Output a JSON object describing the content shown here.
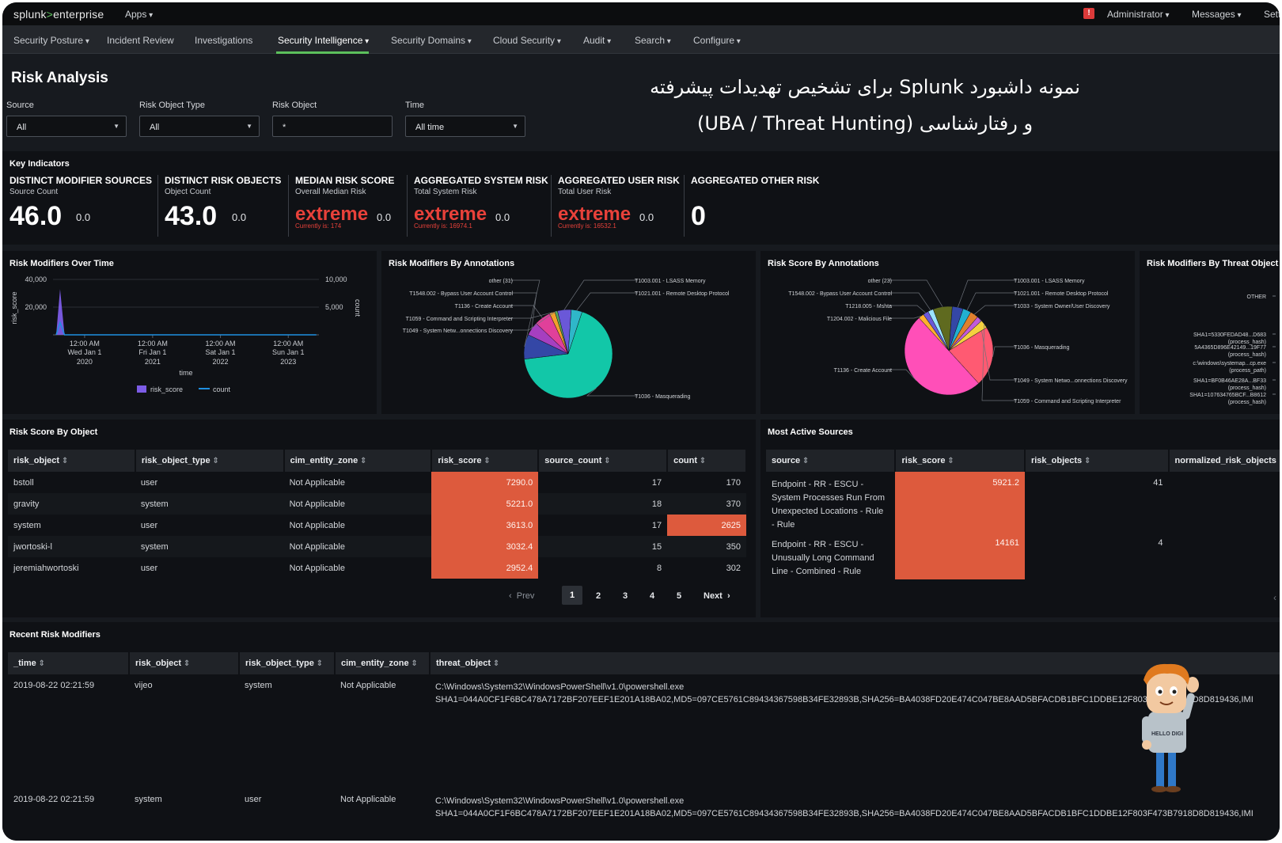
{
  "topbar": {
    "logo_main": "splunk",
    "logo_gt": ">",
    "logo_product": "enterprise",
    "apps": "Apps",
    "user": "Administrator",
    "messages": "Messages",
    "settings": "Setti",
    "alert_icon": "alert-icon"
  },
  "nav": [
    "Security Posture",
    "Incident Review",
    "Investigations",
    "Security Intelligence",
    "Security Domains",
    "Cloud Security",
    "Audit",
    "Search",
    "Configure"
  ],
  "page": {
    "title": "Risk Analysis",
    "overlay_line1": "نمونه داشبورد Splunk برای تشخیص تهدیدات پیشرفته",
    "overlay_line2": "و رفتارشناسی (UBA / Threat Hunting)"
  },
  "filters": {
    "source_label": "Source",
    "source_value": "All",
    "type_label": "Risk Object Type",
    "type_value": "All",
    "object_label": "Risk Object",
    "object_value": "*",
    "time_label": "Time",
    "time_value": "All time"
  },
  "key_indicators": {
    "title": "Key Indicators",
    "items": [
      {
        "title": "DISTINCT MODIFIER SOURCES",
        "sub": "Source Count",
        "value": "46.0",
        "delta": "0.0",
        "current": ""
      },
      {
        "title": "DISTINCT RISK OBJECTS",
        "sub": "Object Count",
        "value": "43.0",
        "delta": "0.0",
        "current": ""
      },
      {
        "title": "MEDIAN RISK SCORE",
        "sub": "Overall Median Risk",
        "value": "extreme",
        "delta": "0.0",
        "current": "Currently is: 174"
      },
      {
        "title": "AGGREGATED SYSTEM RISK",
        "sub": "Total System Risk",
        "value": "extreme",
        "delta": "0.0",
        "current": "Currently is: 16974.1"
      },
      {
        "title": "AGGREGATED USER RISK",
        "sub": "Total User Risk",
        "value": "extreme",
        "delta": "0.0",
        "current": "Currently is: 16532.1"
      },
      {
        "title": "AGGREGATED OTHER RISK",
        "sub": "",
        "value": "0",
        "delta": "",
        "current": ""
      }
    ]
  },
  "chart_titles": {
    "over_time": "Risk Modifiers Over Time",
    "by_annotations": "Risk Modifiers By Annotations",
    "score_by_annotations": "Risk Score By Annotations",
    "by_threat_object": "Risk Modifiers By Threat Object"
  },
  "chart_data": [
    {
      "type": "line",
      "title": "Risk Modifiers Over Time",
      "xlabel": "time",
      "ylabel": "risk_score",
      "y2label": "count",
      "ylim": [
        0,
        40000
      ],
      "y2lim": [
        0,
        10000
      ],
      "yticks": [
        "40,000",
        "20,000"
      ],
      "y2ticks": [
        "10,000",
        "5,000"
      ],
      "xticks": [
        {
          "l1": "12:00 AM",
          "l2": "Wed Jan 1",
          "l3": "2020"
        },
        {
          "l1": "12:00 AM",
          "l2": "Fri Jan 1",
          "l3": "2021"
        },
        {
          "l1": "12:00 AM",
          "l2": "Sat Jan 1",
          "l3": "2022"
        },
        {
          "l1": "12:00 AM",
          "l2": "Sun Jan 1",
          "l3": "2023"
        }
      ],
      "series": [
        {
          "name": "risk_score",
          "color": "#7c5ce6",
          "x": [
            "2019-08-01",
            "2019-08-22",
            "2019-09-15",
            "2023-06-01"
          ],
          "values": [
            0,
            33000,
            0,
            0
          ]
        },
        {
          "name": "count",
          "color": "#1f8fe0",
          "x": [
            "2019-08-01",
            "2019-08-22",
            "2019-09-15",
            "2023-06-01"
          ],
          "values": [
            0,
            2200,
            0,
            0
          ]
        }
      ],
      "legend": "bottom"
    },
    {
      "type": "pie",
      "title": "Risk Modifiers By Annotations",
      "labels": [
        "T1036 - Masquerading",
        "other (31)",
        "T1548.002 - Bypass User Account Control",
        "T1136 - Create Account",
        "T1059 - Command and Scripting Interpreter",
        "T1049 - System Netw...onnections Discovery",
        "T1003.001 - LSASS Memory",
        "T1021.001 - Remote Desktop Protocol"
      ],
      "values": [
        68,
        9,
        5,
        6,
        2,
        1,
        5,
        4
      ],
      "colors": [
        "#12c7a8",
        "#3447a6",
        "#a63fc0",
        "#e0409a",
        "#f2a02c",
        "#59a95b",
        "#6a58d8",
        "#2fb7c9"
      ]
    },
    {
      "type": "pie",
      "title": "Risk Score By Annotations",
      "labels": [
        "T1036 - Masquerading",
        "T1136 - Create Account",
        "T1204.002 - Malicious File",
        "T1218.005 - Mshta",
        "T1548.002 - Bypass User Account Control",
        "other (23)",
        "T1003.001 - LSASS Memory",
        "T1021.001 - Remote Desktop Protocol",
        "T1033 - System Owner/User Discovery",
        "T1049 - System Netwo...onnections Discovery",
        "T1059 - Command and Scripting Interpreter"
      ],
      "values": [
        22,
        50,
        2,
        2,
        2,
        7,
        4,
        3,
        3,
        2,
        3
      ],
      "colors": [
        "#ff5a72",
        "#ff4fb8",
        "#ffb02e",
        "#6a58d8",
        "#9be3ff",
        "#5f6a1f",
        "#3447a6",
        "#22b0d1",
        "#e0802e",
        "#c25adb",
        "#f4d03f"
      ]
    },
    {
      "type": "bar",
      "title": "Risk Modifiers By Threat Object",
      "categories": [
        "OTHER",
        "SHA1=5330FEDAD48...D683 (process_hash)",
        "5A4365D896E42149...19F77 (process_hash)",
        "c:\\windows\\systemap...cp.exe (process_path)",
        "SHA1=BF0B46AE28A...BF33 (process_hash)",
        "SHA1=107634765BCF...B8612 (process_hash)"
      ]
    }
  ],
  "risk_by_object": {
    "title": "Risk Score By Object",
    "columns": [
      "risk_object",
      "risk_object_type",
      "cim_entity_zone",
      "risk_score",
      "source_count",
      "count"
    ],
    "rows": [
      [
        "bstoll",
        "user",
        "Not Applicable",
        "7290.0",
        "17",
        "170"
      ],
      [
        "gravity",
        "system",
        "Not Applicable",
        "5221.0",
        "18",
        "370"
      ],
      [
        "system",
        "user",
        "Not Applicable",
        "3613.0",
        "17",
        "2625"
      ],
      [
        "jwortoski-l",
        "system",
        "Not Applicable",
        "3032.4",
        "15",
        "350"
      ],
      [
        "jeremiahwortoski",
        "user",
        "Not Applicable",
        "2952.4",
        "8",
        "302"
      ]
    ],
    "pager": {
      "prev": "Prev",
      "pages": [
        "1",
        "2",
        "3",
        "4",
        "5"
      ],
      "next": "Next"
    }
  },
  "most_active": {
    "title": "Most Active Sources",
    "columns": [
      "source",
      "risk_score",
      "risk_objects",
      "normalized_risk_objects"
    ],
    "rows": [
      {
        "source": [
          "Endpoint - RR - ESCU -",
          "System Processes Run From",
          "Unexpected Locations - Rule",
          "- Rule"
        ],
        "risk_score": "5921.2",
        "risk_objects": "41"
      },
      {
        "source": [
          "Endpoint - RR - ESCU -",
          "Unusually Long Command",
          "Line - Combined - Rule"
        ],
        "risk_score": "14161",
        "risk_objects": "4"
      }
    ]
  },
  "recent": {
    "title": "Recent Risk Modifiers",
    "columns": [
      "_time",
      "risk_object",
      "risk_object_type",
      "cim_entity_zone",
      "threat_object"
    ],
    "rows": [
      {
        "time": "2019-08-22 02:21:59",
        "object": "vijeo",
        "type": "system",
        "zone": "Not Applicable",
        "threat1": "C:\\Windows\\System32\\WindowsPowerShell\\v1.0\\powershell.exe",
        "threat2": "SHA1=044A0CF1F6BC478A7172BF207EEF1E201A18BA02,MD5=097CE5761C89434367598B34FE32893B,SHA256=BA4038FD20E474C047BE8AAD5BFACDB1BFC1DDBE12F803F473B7918D8D819436,IMI"
      },
      {
        "time": "2019-08-22 02:21:59",
        "object": "system",
        "type": "user",
        "zone": "Not Applicable",
        "threat1": "C:\\Windows\\System32\\WindowsPowerShell\\v1.0\\powershell.exe",
        "threat2": "SHA1=044A0CF1F6BC478A7172BF207EEF1E201A18BA02,MD5=097CE5761C89434367598B34FE32893B,SHA256=BA4038FD20E474C047BE8AAD5BFACDB1BFC1DDBE12F803F473B7918D8D819436,IMI"
      }
    ]
  },
  "mascot": {
    "shirt_text": "HELLO DIGI"
  }
}
